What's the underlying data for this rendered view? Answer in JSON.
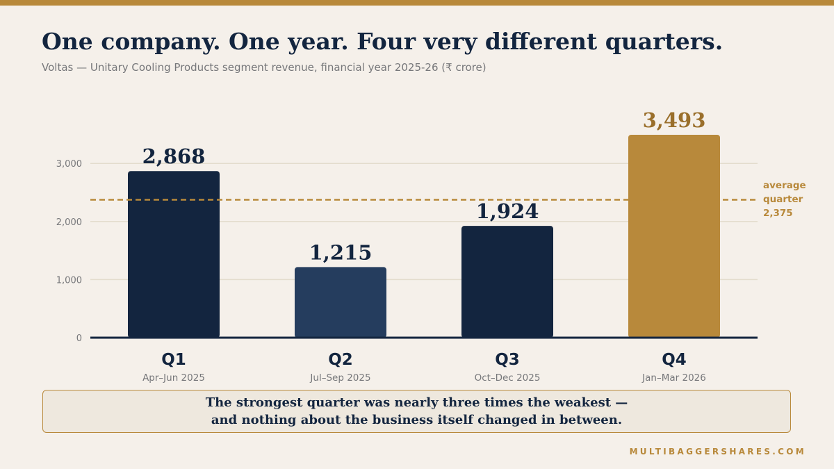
{
  "header": {
    "title": "One company. One year. Four very different quarters.",
    "subtitle": "Voltas — Unitary Cooling Products segment revenue, financial year 2025-26 (₹ crore)"
  },
  "chart_data": {
    "type": "bar",
    "title": "One company. One year. Four very different quarters.",
    "subtitle": "Voltas — Unitary Cooling Products segment revenue, financial year 2025-26 (₹ crore)",
    "categories": [
      "Q1",
      "Q2",
      "Q3",
      "Q4"
    ],
    "category_sublabels": [
      "Apr–Jun 2025",
      "Jul–Sep 2025",
      "Oct–Dec 2025",
      "Jan–Mar 2026"
    ],
    "values": [
      2868,
      1215,
      1924,
      3493
    ],
    "value_labels": [
      "2,868",
      "1,215",
      "1,924",
      "3,493"
    ],
    "y_ticks": [
      0,
      1000,
      2000,
      3000
    ],
    "y_tick_labels": [
      "0",
      "1,000",
      "2,000",
      "3,000"
    ],
    "ylim": [
      0,
      3493
    ],
    "grid": true,
    "reference_line": {
      "value": 2375,
      "label_lines": [
        "average",
        "quarter",
        "2,375"
      ]
    },
    "colors": {
      "q1": "#13253f",
      "q2": "#253d5e",
      "q3": "#13253f",
      "q4_highlight": "#b8893b",
      "q4_label": "#9a6f2b",
      "accent": "#b8893b",
      "gridline": "#e3dccd",
      "axis": "#13253f",
      "tick_text": "#76777a"
    }
  },
  "callout": {
    "line1": "The strongest quarter was nearly three times the weakest —",
    "line2": "and nothing about the business itself changed in between."
  },
  "footer": {
    "brand": "MULTIBAGGERSHARES.COM"
  }
}
